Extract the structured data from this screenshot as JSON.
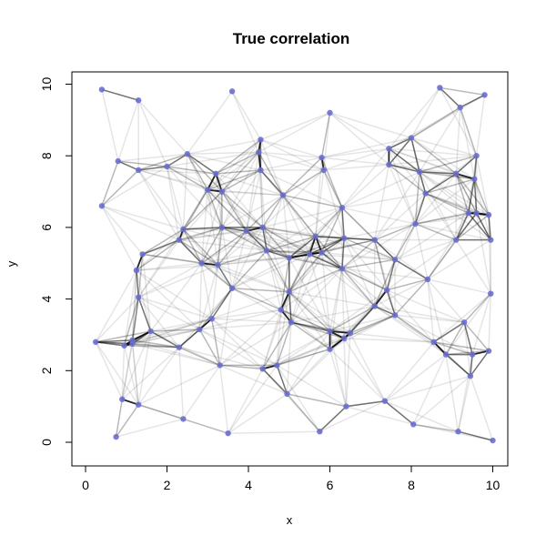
{
  "chart_data": {
    "type": "scatter",
    "title": "True correlation",
    "xlabel": "x",
    "ylabel": "y",
    "xlim": [
      -0.3,
      10.4
    ],
    "ylim": [
      -0.6,
      10.4
    ],
    "xticks": [
      "0",
      "2",
      "4",
      "6",
      "8",
      "10"
    ],
    "yticks": [
      "0",
      "2",
      "4",
      "6",
      "8",
      "10"
    ],
    "grid": false,
    "legend": "none",
    "colors": {
      "point": "#6b6fd1",
      "edge": "#000000",
      "frame": "#000000"
    },
    "points": [
      {
        "x": 0.4,
        "y": 9.85
      },
      {
        "x": 1.3,
        "y": 9.55
      },
      {
        "x": 3.6,
        "y": 9.8
      },
      {
        "x": 6.0,
        "y": 9.2
      },
      {
        "x": 8.7,
        "y": 9.9
      },
      {
        "x": 9.2,
        "y": 9.35
      },
      {
        "x": 9.8,
        "y": 9.7
      },
      {
        "x": 0.8,
        "y": 7.85
      },
      {
        "x": 1.3,
        "y": 7.6
      },
      {
        "x": 2.0,
        "y": 7.7
      },
      {
        "x": 2.5,
        "y": 8.05
      },
      {
        "x": 3.0,
        "y": 7.05
      },
      {
        "x": 3.2,
        "y": 7.5
      },
      {
        "x": 3.35,
        "y": 7.0
      },
      {
        "x": 4.3,
        "y": 8.45
      },
      {
        "x": 4.25,
        "y": 8.1
      },
      {
        "x": 4.3,
        "y": 7.6
      },
      {
        "x": 4.85,
        "y": 6.9
      },
      {
        "x": 5.8,
        "y": 7.95
      },
      {
        "x": 5.85,
        "y": 7.6
      },
      {
        "x": 7.45,
        "y": 8.2
      },
      {
        "x": 8.0,
        "y": 8.5
      },
      {
        "x": 7.45,
        "y": 7.75
      },
      {
        "x": 8.2,
        "y": 7.55
      },
      {
        "x": 8.35,
        "y": 6.95
      },
      {
        "x": 9.6,
        "y": 8.0
      },
      {
        "x": 9.1,
        "y": 7.5
      },
      {
        "x": 9.55,
        "y": 7.35
      },
      {
        "x": 0.4,
        "y": 6.6
      },
      {
        "x": 2.4,
        "y": 5.95
      },
      {
        "x": 2.3,
        "y": 5.65
      },
      {
        "x": 3.35,
        "y": 6.0
      },
      {
        "x": 3.95,
        "y": 5.9
      },
      {
        "x": 4.35,
        "y": 6.0
      },
      {
        "x": 4.45,
        "y": 5.35
      },
      {
        "x": 5.0,
        "y": 5.15
      },
      {
        "x": 5.5,
        "y": 5.25
      },
      {
        "x": 5.65,
        "y": 5.75
      },
      {
        "x": 5.8,
        "y": 5.3
      },
      {
        "x": 6.3,
        "y": 6.55
      },
      {
        "x": 6.35,
        "y": 5.7
      },
      {
        "x": 6.3,
        "y": 4.85
      },
      {
        "x": 7.1,
        "y": 5.65
      },
      {
        "x": 8.1,
        "y": 6.1
      },
      {
        "x": 9.1,
        "y": 5.65
      },
      {
        "x": 9.4,
        "y": 6.4
      },
      {
        "x": 9.6,
        "y": 6.4
      },
      {
        "x": 9.9,
        "y": 6.35
      },
      {
        "x": 9.95,
        "y": 5.65
      },
      {
        "x": 1.4,
        "y": 5.25
      },
      {
        "x": 1.25,
        "y": 4.8
      },
      {
        "x": 2.85,
        "y": 5.0
      },
      {
        "x": 3.25,
        "y": 4.95
      },
      {
        "x": 3.6,
        "y": 4.3
      },
      {
        "x": 7.6,
        "y": 5.1
      },
      {
        "x": 7.4,
        "y": 4.25
      },
      {
        "x": 8.4,
        "y": 4.55
      },
      {
        "x": 9.95,
        "y": 4.15
      },
      {
        "x": 1.3,
        "y": 4.05
      },
      {
        "x": 4.8,
        "y": 3.7
      },
      {
        "x": 5.0,
        "y": 4.2
      },
      {
        "x": 5.05,
        "y": 3.35
      },
      {
        "x": 7.1,
        "y": 3.8
      },
      {
        "x": 7.6,
        "y": 3.55
      },
      {
        "x": 0.25,
        "y": 2.8
      },
      {
        "x": 0.95,
        "y": 2.7
      },
      {
        "x": 1.15,
        "y": 2.75
      },
      {
        "x": 1.15,
        "y": 2.85
      },
      {
        "x": 1.6,
        "y": 3.1
      },
      {
        "x": 2.3,
        "y": 2.65
      },
      {
        "x": 2.8,
        "y": 3.15
      },
      {
        "x": 3.1,
        "y": 3.45
      },
      {
        "x": 6.0,
        "y": 3.1
      },
      {
        "x": 6.0,
        "y": 2.6
      },
      {
        "x": 6.35,
        "y": 2.9
      },
      {
        "x": 6.5,
        "y": 3.05
      },
      {
        "x": 8.55,
        "y": 2.8
      },
      {
        "x": 8.85,
        "y": 2.45
      },
      {
        "x": 9.3,
        "y": 3.35
      },
      {
        "x": 9.5,
        "y": 2.45
      },
      {
        "x": 9.9,
        "y": 2.55
      },
      {
        "x": 3.3,
        "y": 2.15
      },
      {
        "x": 4.35,
        "y": 2.05
      },
      {
        "x": 4.7,
        "y": 2.15
      },
      {
        "x": 4.95,
        "y": 1.35
      },
      {
        "x": 9.45,
        "y": 1.85
      },
      {
        "x": 0.9,
        "y": 1.2
      },
      {
        "x": 1.3,
        "y": 1.05
      },
      {
        "x": 2.4,
        "y": 0.65
      },
      {
        "x": 3.5,
        "y": 0.25
      },
      {
        "x": 0.75,
        "y": 0.15
      },
      {
        "x": 5.75,
        "y": 0.3
      },
      {
        "x": 6.4,
        "y": 1.0
      },
      {
        "x": 7.35,
        "y": 1.15
      },
      {
        "x": 8.05,
        "y": 0.5
      },
      {
        "x": 9.15,
        "y": 0.3
      },
      {
        "x": 10.0,
        "y": 0.05
      }
    ]
  }
}
